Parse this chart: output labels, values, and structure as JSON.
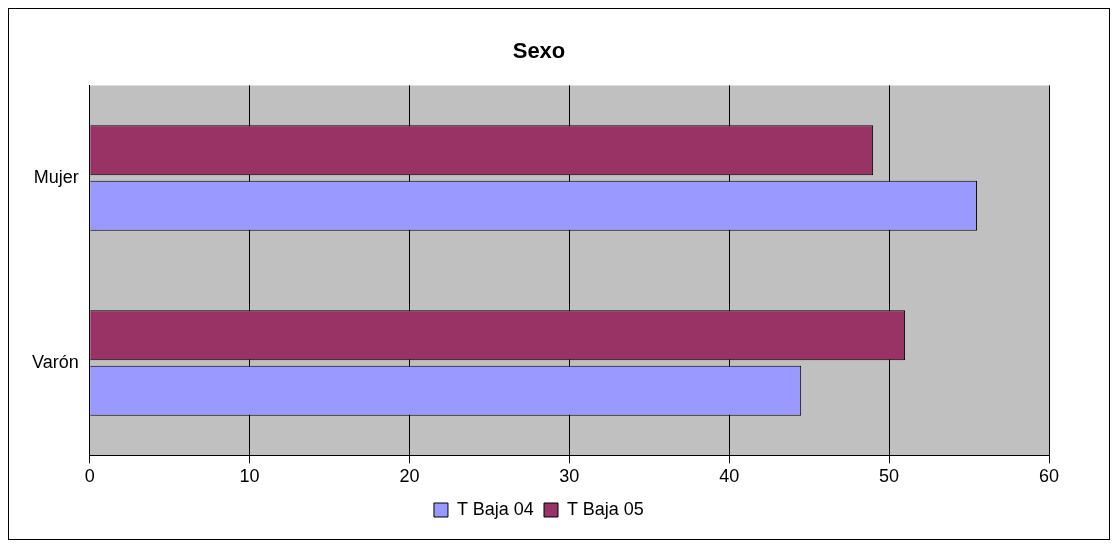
{
  "chart_data": {
    "type": "bar",
    "orientation": "horizontal",
    "title": "Sexo",
    "categories": [
      "Mujer",
      "Varón"
    ],
    "series": [
      {
        "name": "T Baja 04",
        "color": "#9999ff",
        "values": [
          55.5,
          44.5
        ]
      },
      {
        "name": "T Baja 05",
        "color": "#993366",
        "values": [
          49,
          51
        ]
      }
    ],
    "xlim": [
      0,
      60
    ],
    "xticks": [
      0,
      10,
      20,
      30,
      40,
      50,
      60
    ],
    "grid": "x",
    "legend": "bottom"
  }
}
